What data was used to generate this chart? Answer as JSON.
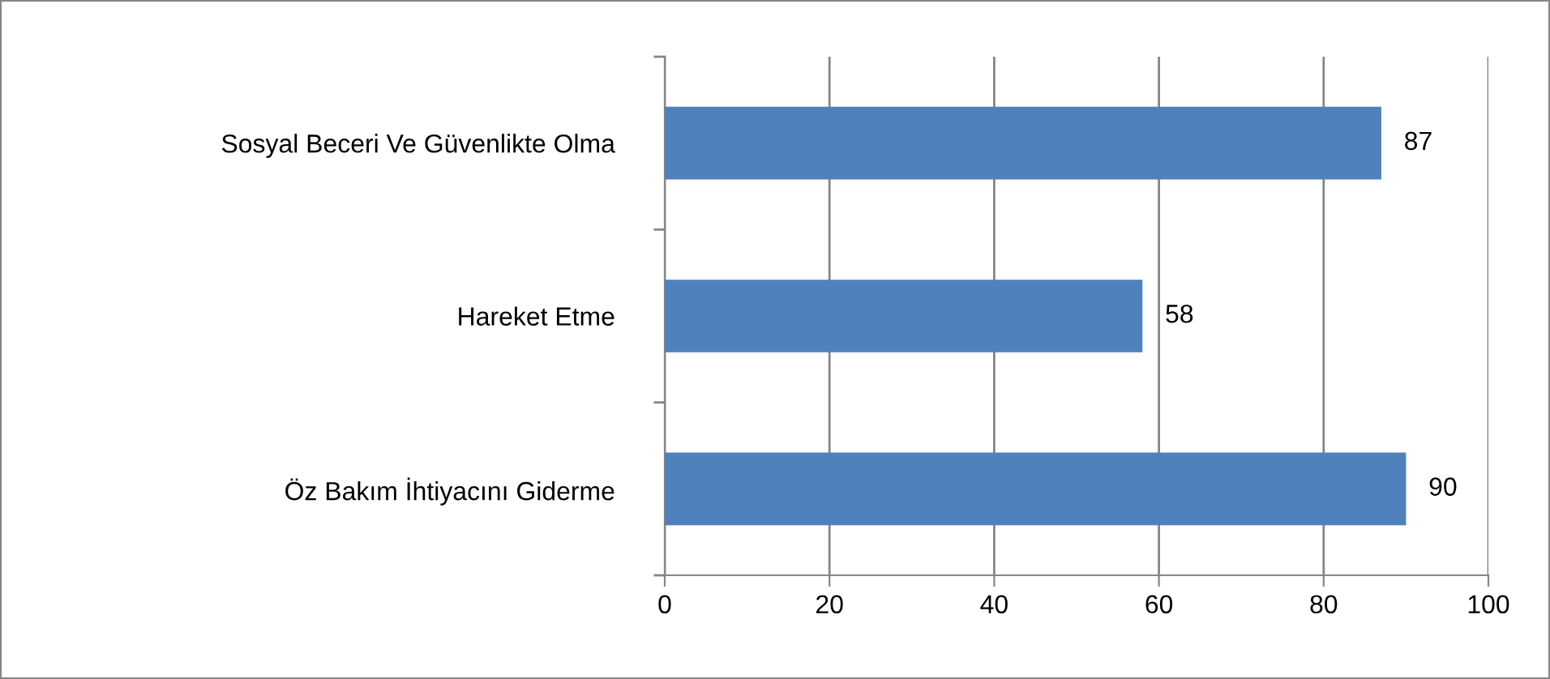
{
  "chart_data": {
    "type": "bar",
    "orientation": "horizontal",
    "categories": [
      "Sosyal Beceri Ve Güvenlikte Olma",
      "Hareket Etme",
      "Öz Bakım İhtiyacını Giderme"
    ],
    "values": [
      87,
      58,
      90
    ],
    "color": "#4f81bd",
    "xlim": [
      0,
      100
    ],
    "xticks": [
      0,
      20,
      40,
      60,
      80,
      100
    ],
    "grid": "x",
    "data_labels": true
  }
}
